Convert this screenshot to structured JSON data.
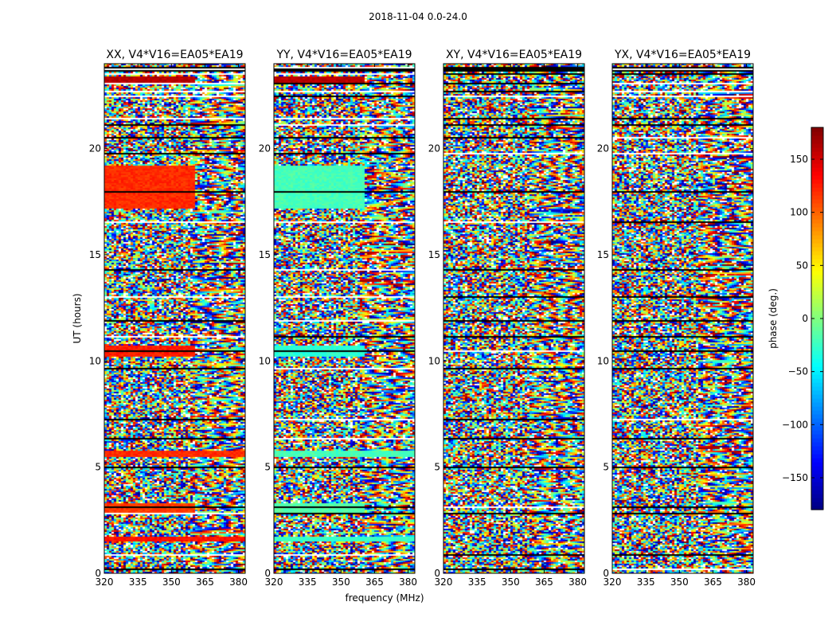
{
  "figure": {
    "suptitle": "2018-11-04 0.0-24.0",
    "xlabel": "frequency (MHz)",
    "ylabel": "UT (hours)",
    "colorbar_label": "phase (deg.)"
  },
  "chart_data": [
    {
      "type": "heatmap",
      "title": "XX, V4*V16=EA05*EA19",
      "x_ticks": [
        320,
        335,
        350,
        365,
        380
      ],
      "x_range": [
        320,
        383
      ],
      "y_ticks": [
        0,
        5,
        10,
        15,
        20
      ],
      "y_range": [
        0,
        24
      ],
      "z_range": [
        -180,
        180
      ],
      "texture": "phase-wrap noise with coherent orange bands",
      "coherent_bands": [
        {
          "t0": 17.2,
          "t1": 19.2,
          "f0": 320,
          "f1": 360,
          "phase": 120
        },
        {
          "t0": 10.2,
          "t1": 10.7,
          "f0": 320,
          "f1": 360,
          "phase": 125
        },
        {
          "t0": 5.5,
          "t1": 5.8,
          "f0": 320,
          "f1": 383,
          "phase": 120
        },
        {
          "t0": 2.8,
          "t1": 3.3,
          "f0": 320,
          "f1": 360,
          "phase": 115
        },
        {
          "t0": 1.5,
          "t1": 1.7,
          "f0": 320,
          "f1": 383,
          "phase": 130
        },
        {
          "t0": 23.0,
          "t1": 23.4,
          "f0": 320,
          "f1": 360,
          "phase": 160
        }
      ]
    },
    {
      "type": "heatmap",
      "title": "YY, V4*V16=EA05*EA19",
      "x_ticks": [
        320,
        335,
        350,
        365,
        380
      ],
      "x_range": [
        320,
        383
      ],
      "y_ticks": [
        0,
        5,
        10,
        15,
        20
      ],
      "y_range": [
        0,
        24
      ],
      "z_range": [
        -180,
        180
      ],
      "texture": "phase-wrap noise with coherent green bands",
      "coherent_bands": [
        {
          "t0": 17.2,
          "t1": 19.2,
          "f0": 320,
          "f1": 360,
          "phase": -20
        },
        {
          "t0": 10.2,
          "t1": 10.7,
          "f0": 320,
          "f1": 360,
          "phase": -30
        },
        {
          "t0": 5.5,
          "t1": 5.8,
          "f0": 320,
          "f1": 383,
          "phase": -20
        },
        {
          "t0": 2.8,
          "t1": 3.3,
          "f0": 320,
          "f1": 360,
          "phase": -15
        },
        {
          "t0": 1.5,
          "t1": 1.7,
          "f0": 320,
          "f1": 383,
          "phase": -25
        },
        {
          "t0": 23.0,
          "t1": 23.4,
          "f0": 320,
          "f1": 360,
          "phase": 160
        }
      ]
    },
    {
      "type": "heatmap",
      "title": "XY, V4*V16=EA05*EA19",
      "x_ticks": [
        320,
        335,
        350,
        365,
        380
      ],
      "x_range": [
        320,
        383
      ],
      "y_ticks": [
        0,
        5,
        10,
        15,
        20
      ],
      "y_range": [
        0,
        24
      ],
      "z_range": [
        -180,
        180
      ],
      "texture": "phase-wrap noise",
      "coherent_bands": []
    },
    {
      "type": "heatmap",
      "title": "YX, V4*V16=EA05*EA19",
      "x_ticks": [
        320,
        335,
        350,
        365,
        380
      ],
      "x_range": [
        320,
        383
      ],
      "y_ticks": [
        0,
        5,
        10,
        15,
        20
      ],
      "y_range": [
        0,
        24
      ],
      "z_range": [
        -180,
        180
      ],
      "texture": "phase-wrap noise",
      "coherent_bands": []
    }
  ],
  "colorbar": {
    "colormap": "jet",
    "range": [
      -180,
      180
    ],
    "ticks": [
      -150,
      -100,
      -50,
      0,
      50,
      100,
      150
    ],
    "tick_labels": [
      "−150",
      "−100",
      "−50",
      "0",
      "50",
      "100",
      "150"
    ]
  }
}
